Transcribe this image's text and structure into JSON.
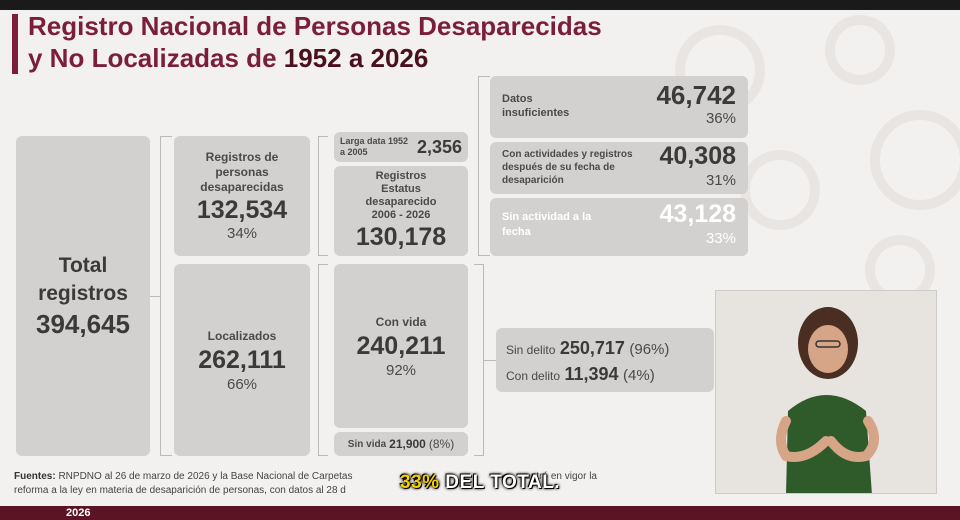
{
  "title": {
    "line1": "Registro Nacional de Personas Desaparecidas",
    "line2_prefix": "y No Localizadas de ",
    "line2_range": "1952 a 2026"
  },
  "total": {
    "label_line1": "Total",
    "label_line2": "registros",
    "value": "394,645"
  },
  "desaparecidas": {
    "label": "Registros de personas desaparecidas",
    "value": "132,534",
    "pct": "34%"
  },
  "localizados": {
    "label": "Localizados",
    "value": "262,111",
    "pct": "66%"
  },
  "larga_data": {
    "label": "Larga data 1952 a 2005",
    "value": "2,356"
  },
  "estatus": {
    "label": "Registros Estatus desaparecido 2006 - 2026",
    "value": "130,178"
  },
  "con_vida": {
    "label": "Con vida",
    "value": "240,211",
    "pct": "92%"
  },
  "sin_vida": {
    "label": "Sin vida",
    "value": "21,900",
    "pct": "(8%)"
  },
  "datos_insuficientes": {
    "label": "Datos insuficientes",
    "value": "46,742",
    "pct": "36%"
  },
  "con_actividades": {
    "label": "Con actividades y registros después de su fecha de desaparición",
    "value": "40,308",
    "pct": "31%"
  },
  "sin_actividad": {
    "label": "Sin actividad a la fecha",
    "value": "43,128",
    "pct": "33%"
  },
  "sin_delito": {
    "label": "Sin delito",
    "value": "250,717",
    "pct": "(96%)"
  },
  "con_delito": {
    "label": "Con delito",
    "value": "11,394",
    "pct": "(4%)"
  },
  "footer": {
    "label": "Fuentes:",
    "text1": "RNPDNO al 26 de marzo de 2026 y la Base Nacional de Carpetas",
    "text1_tail": "entró en vigor la",
    "text2": "reforma a la ley en materia de desaparición de personas, con datos al 28 d"
  },
  "caption": {
    "highlight": "33%",
    "rest": " DEL TOTAL."
  },
  "bottom_bar": {
    "year": "2026"
  },
  "colors": {
    "title": "#7b1e3d",
    "box": "#d3d1cf",
    "accent_purple": "#5b3087"
  }
}
